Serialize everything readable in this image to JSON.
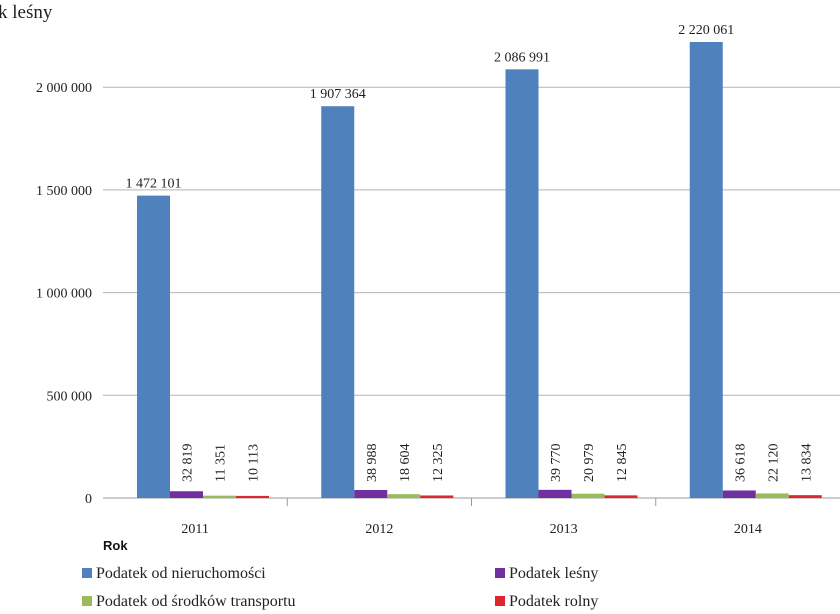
{
  "chart_data": {
    "type": "bar",
    "title": "k leśny",
    "xlabel": "Rok",
    "ylabel": "",
    "categories": [
      "2011",
      "2012",
      "2013",
      "2014"
    ],
    "ylim": [
      0,
      2220061
    ],
    "yticks": [
      0,
      500000,
      1000000,
      1500000,
      2000000
    ],
    "ytick_labels": [
      "0",
      "500 000",
      "1 000 000",
      "1 500 000",
      "2 000 000"
    ],
    "grid": true,
    "legend": "bottom",
    "series": [
      {
        "name": "Podatek od nieruchomości",
        "color": "#4f81bd",
        "values": [
          1472101,
          1907364,
          2086991,
          2220061
        ],
        "labels": [
          "1 472 101",
          "1 907 364",
          "2 086 991",
          "2 220 061"
        ]
      },
      {
        "name": "Podatek leśny",
        "color": "#7030a0",
        "values": [
          32819,
          38988,
          39770,
          36618
        ],
        "labels": [
          "32 819",
          "38 988",
          "39 770",
          "36 618"
        ]
      },
      {
        "name": "Podatek od środków transportu",
        "color": "#9bbb59",
        "values": [
          11351,
          18604,
          20979,
          22120
        ],
        "labels": [
          "11 351",
          "18 604",
          "20 979",
          "22 120"
        ]
      },
      {
        "name": "Podatek rolny",
        "color": "#e0262c",
        "values": [
          10113,
          12325,
          12845,
          13834
        ],
        "labels": [
          "10 113",
          "12 325",
          "12 845",
          "13 834"
        ]
      }
    ]
  }
}
